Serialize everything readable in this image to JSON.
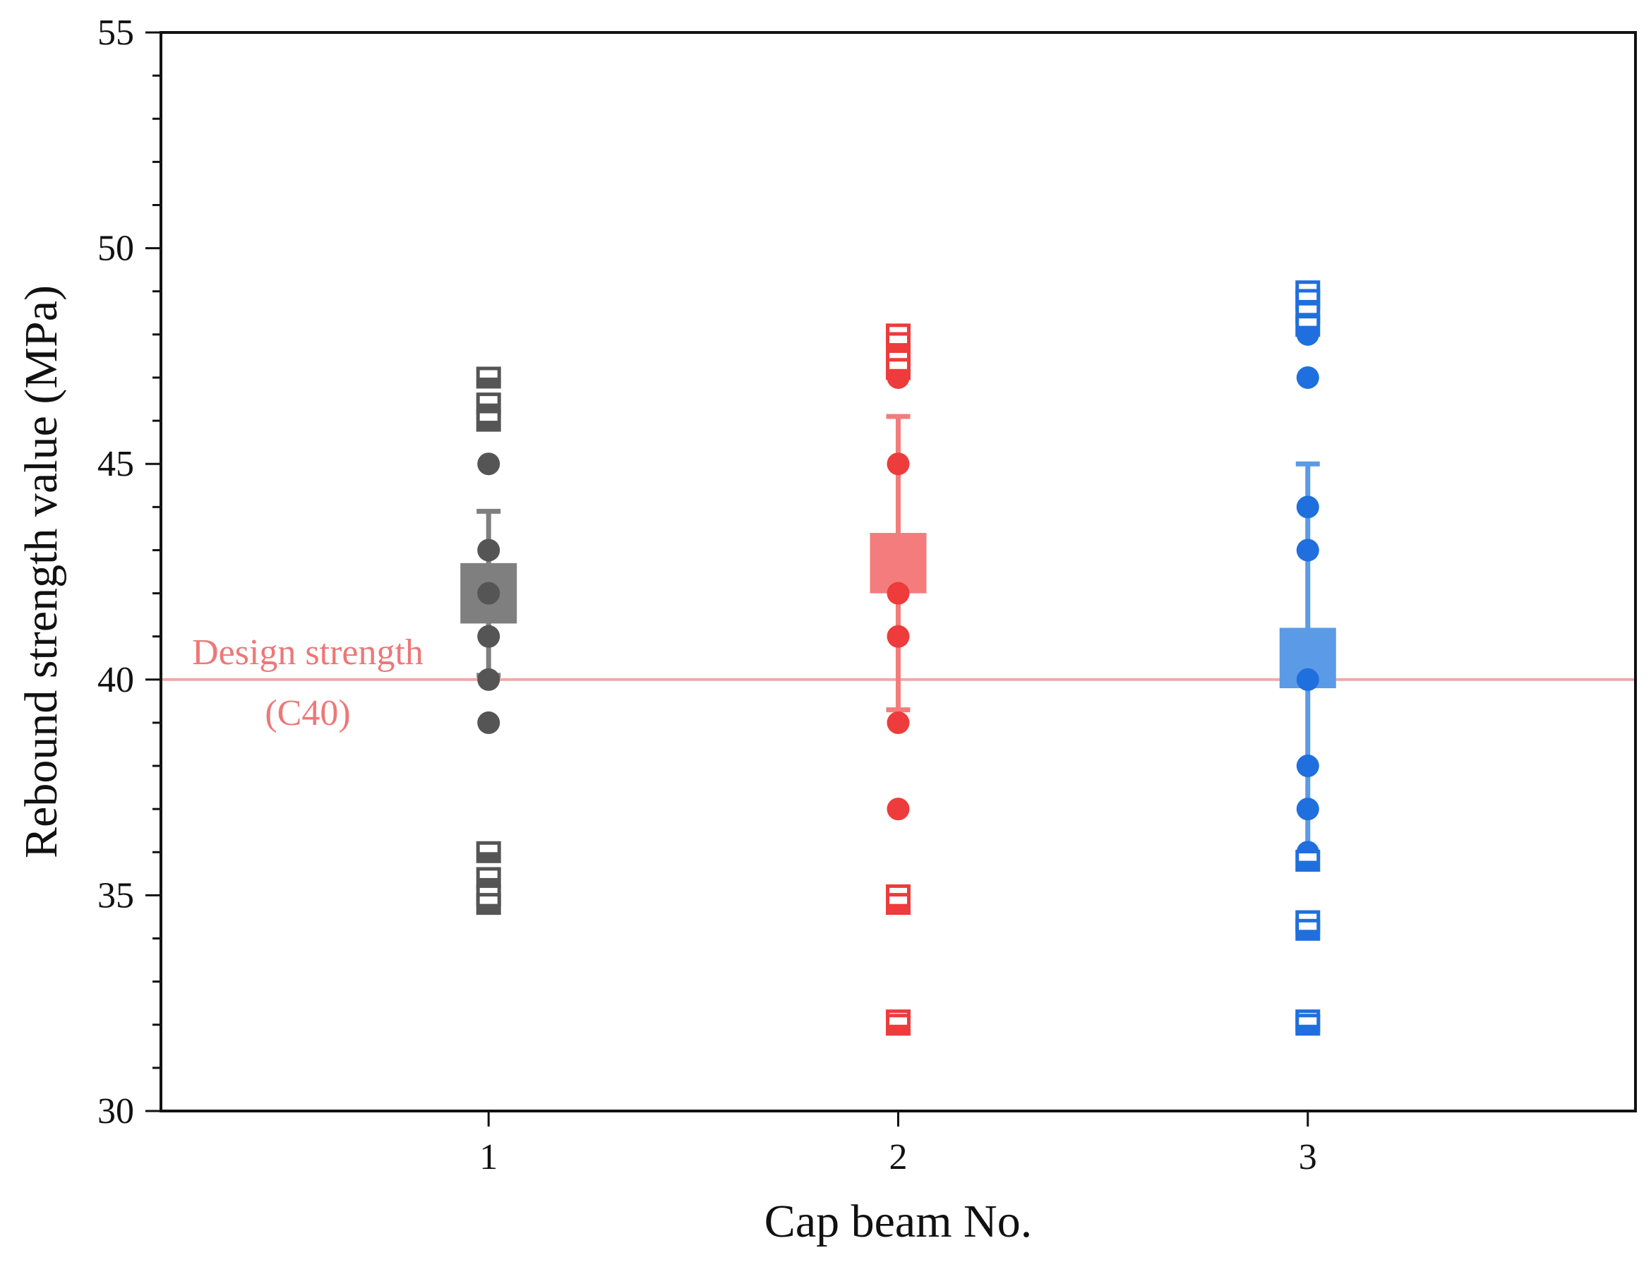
{
  "chart_data": {
    "type": "scatter",
    "title": "",
    "xlabel": "Cap beam No.",
    "ylabel": "Rebound strength value (MPa)",
    "xlim": [
      0.2,
      3.8
    ],
    "ylim": [
      30,
      55
    ],
    "x_ticks": [
      1,
      2,
      3
    ],
    "x_tick_labels": [
      "1",
      "2",
      "3"
    ],
    "y_ticks": [
      30,
      35,
      40,
      45,
      50,
      55
    ],
    "y_tick_labels": [
      "30",
      "35",
      "40",
      "45",
      "50",
      "55"
    ],
    "y_minor_step": 1,
    "grid": false,
    "reference_line": {
      "y": 40,
      "label_line1": "Design strength",
      "label_line2": "(C40)",
      "color": "#f2a8a8",
      "text_color": "#ee7777"
    },
    "series": [
      {
        "name": "Cap beam 1",
        "x": 1,
        "color": "#555555",
        "box_color": "#7f7f7f",
        "mean_box": [
          41.3,
          42.7
        ],
        "whisker": [
          40.1,
          43.9
        ],
        "points": [
          45,
          43,
          42,
          41,
          40,
          39
        ],
        "outliers": [
          47,
          46.4,
          46,
          36,
          35.4,
          35,
          34.8
        ]
      },
      {
        "name": "Cap beam 2",
        "x": 2,
        "color": "#ee3b3b",
        "box_color": "#f47c7c",
        "mean_box": [
          42,
          43.4
        ],
        "whisker": [
          39.3,
          46.1
        ],
        "points": [
          47,
          45,
          42,
          41,
          39,
          37
        ],
        "outliers": [
          48,
          47.8,
          47.4,
          47.2,
          35,
          34.8,
          32.1,
          32
        ]
      },
      {
        "name": "Cap beam 3",
        "x": 3,
        "color": "#1f6fde",
        "box_color": "#5b9ae6",
        "mean_box": [
          39.8,
          41.2
        ],
        "whisker": [
          36,
          45
        ],
        "points": [
          48,
          47,
          44,
          43,
          40,
          38,
          37,
          36
        ],
        "outliers": [
          49,
          48.8,
          48.5,
          48.2,
          35.8,
          34.4,
          34.2,
          32.1,
          32
        ]
      }
    ]
  }
}
